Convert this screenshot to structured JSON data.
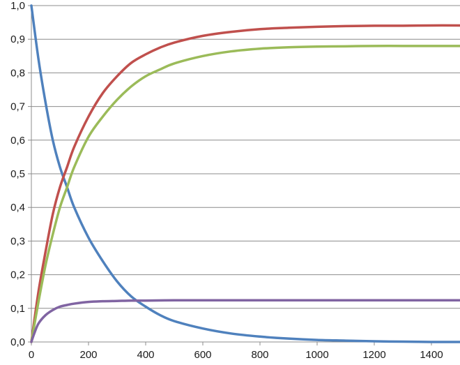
{
  "chart_data": {
    "type": "line",
    "title": "",
    "xlabel": "",
    "ylabel": "",
    "xlim": [
      0,
      1500
    ],
    "ylim": [
      0,
      1
    ],
    "grid": true,
    "legend": "none",
    "x_ticks": [
      {
        "value": 0,
        "label": "0"
      },
      {
        "value": 200,
        "label": "200"
      },
      {
        "value": 400,
        "label": "400"
      },
      {
        "value": 600,
        "label": "600"
      },
      {
        "value": 800,
        "label": "800"
      },
      {
        "value": 1000,
        "label": "1000"
      },
      {
        "value": 1200,
        "label": "1200"
      },
      {
        "value": 1400,
        "label": "1400"
      }
    ],
    "y_ticks": [
      {
        "value": 0.0,
        "label": "0,0"
      },
      {
        "value": 0.1,
        "label": "0,1"
      },
      {
        "value": 0.2,
        "label": "0,2"
      },
      {
        "value": 0.3,
        "label": "0,3"
      },
      {
        "value": 0.4,
        "label": "0,4"
      },
      {
        "value": 0.5,
        "label": "0,5"
      },
      {
        "value": 0.6,
        "label": "0,6"
      },
      {
        "value": 0.7,
        "label": "0,7"
      },
      {
        "value": 0.8,
        "label": "0,8"
      },
      {
        "value": 0.9,
        "label": "0,9"
      },
      {
        "value": 1.0,
        "label": "1,0"
      }
    ],
    "series": [
      {
        "color": "#4f81bd",
        "x": [
          0,
          25,
          50,
          75,
          100,
          125,
          150,
          200,
          250,
          300,
          350,
          400,
          450,
          500,
          600,
          700,
          800,
          900,
          1000,
          1100,
          1200,
          1300,
          1400,
          1500
        ],
        "y": [
          1.0,
          0.84,
          0.71,
          0.6,
          0.52,
          0.46,
          0.4,
          0.31,
          0.24,
          0.18,
          0.135,
          0.105,
          0.08,
          0.062,
          0.04,
          0.025,
          0.016,
          0.01,
          0.006,
          0.004,
          0.002,
          0.001,
          0.0,
          0.0
        ]
      },
      {
        "color": "#c0504d",
        "x": [
          0,
          25,
          50,
          75,
          100,
          125,
          150,
          200,
          250,
          300,
          350,
          400,
          450,
          500,
          600,
          700,
          800,
          900,
          1000,
          1100,
          1200,
          1300,
          1400,
          1500
        ],
        "y": [
          0.0,
          0.15,
          0.27,
          0.38,
          0.46,
          0.52,
          0.58,
          0.67,
          0.74,
          0.79,
          0.83,
          0.855,
          0.875,
          0.89,
          0.91,
          0.922,
          0.93,
          0.934,
          0.937,
          0.939,
          0.94,
          0.94,
          0.941,
          0.941
        ]
      },
      {
        "color": "#9bbb59",
        "x": [
          0,
          25,
          50,
          75,
          100,
          125,
          150,
          200,
          250,
          300,
          350,
          400,
          450,
          500,
          600,
          700,
          800,
          900,
          1000,
          1100,
          1200,
          1300,
          1400,
          1500
        ],
        "y": [
          0.0,
          0.12,
          0.23,
          0.32,
          0.4,
          0.46,
          0.52,
          0.61,
          0.67,
          0.72,
          0.76,
          0.79,
          0.81,
          0.828,
          0.85,
          0.864,
          0.872,
          0.876,
          0.878,
          0.879,
          0.88,
          0.88,
          0.88,
          0.88
        ]
      },
      {
        "color": "#8064a2",
        "x": [
          0,
          10,
          25,
          50,
          75,
          100,
          125,
          150,
          200,
          250,
          300,
          350,
          400,
          500,
          600,
          800,
          1000,
          1200,
          1400,
          1500
        ],
        "y": [
          0.0,
          0.025,
          0.055,
          0.08,
          0.095,
          0.105,
          0.11,
          0.114,
          0.119,
          0.121,
          0.122,
          0.123,
          0.123,
          0.124,
          0.124,
          0.124,
          0.124,
          0.124,
          0.124,
          0.124
        ]
      }
    ]
  }
}
